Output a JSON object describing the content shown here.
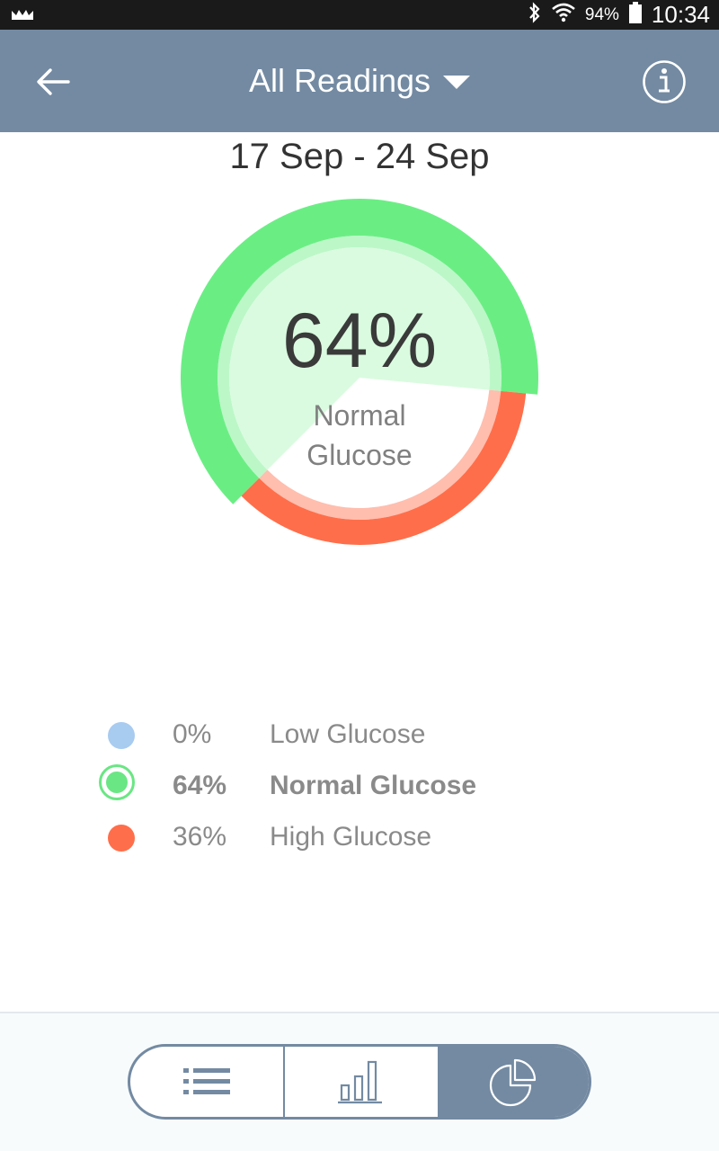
{
  "status_bar": {
    "battery_percent": "94%",
    "time": "10:34",
    "icons": [
      "notification-icon",
      "bluetooth-icon",
      "wifi-icon",
      "battery-icon"
    ]
  },
  "app_bar": {
    "title": "All Readings",
    "left_icon": "back-arrow-icon",
    "right_icon": "info-icon",
    "background": "#738aa2"
  },
  "date_range": "17 Sep - 24 Sep",
  "summary": {
    "center_percent": "64%",
    "center_label_line1": "Normal",
    "center_label_line2": "Glucose"
  },
  "chart_data": {
    "type": "pie",
    "categories": [
      "Low Glucose",
      "Normal Glucose",
      "High Glucose"
    ],
    "values": [
      0,
      64,
      36
    ],
    "colors": [
      "#a8cbf0",
      "#6aee84",
      "#ff6e4a"
    ],
    "selected": "Normal Glucose"
  },
  "legend": [
    {
      "percent": "0%",
      "label": "Low Glucose",
      "color": "#a8cbf0",
      "selected": false
    },
    {
      "percent": "64%",
      "label": "Normal Glucose",
      "color": "#6ae684",
      "selected": true
    },
    {
      "percent": "36%",
      "label": "High Glucose",
      "color": "#ff6e4a",
      "selected": false
    }
  ],
  "view_switcher": {
    "options": [
      "list-view-icon",
      "bar-chart-view-icon",
      "pie-chart-view-icon"
    ],
    "active": "pie-chart-view-icon"
  }
}
